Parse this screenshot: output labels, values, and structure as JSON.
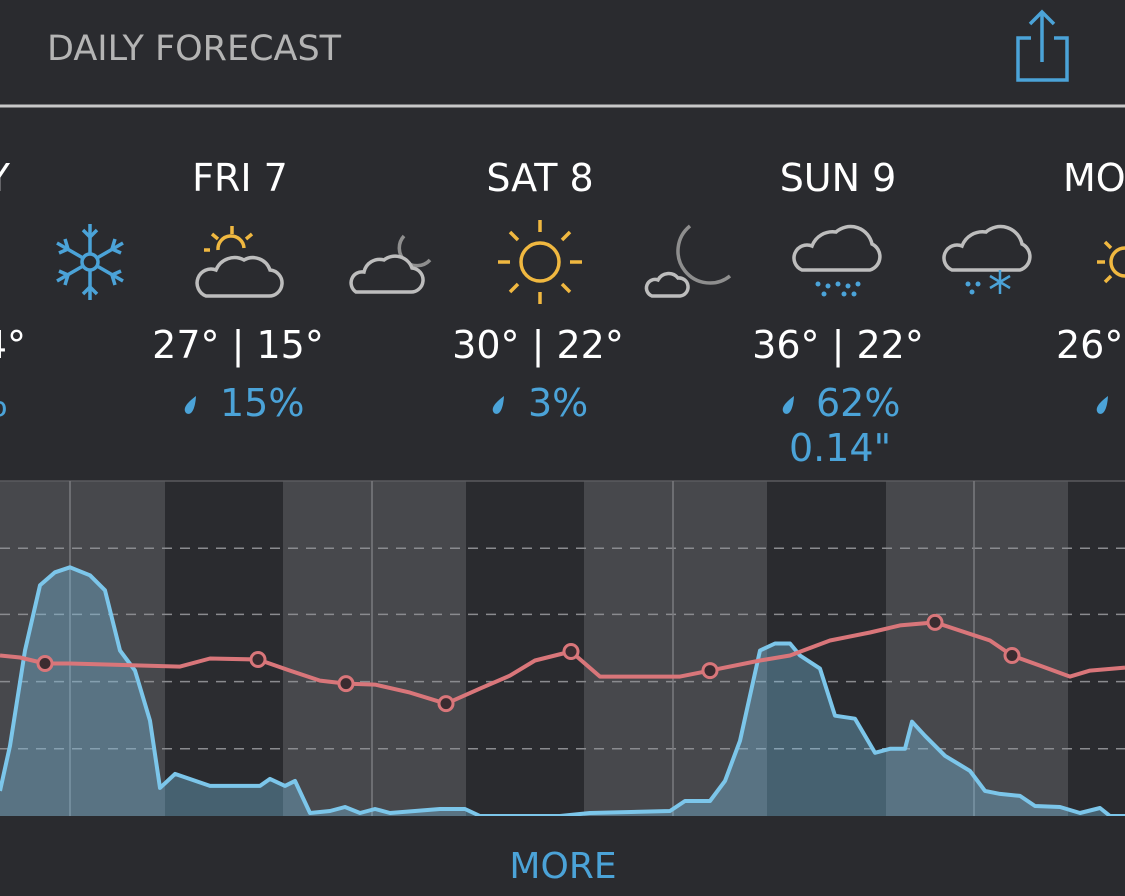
{
  "header": {
    "title": "DAILY FORECAST",
    "action": "MORE"
  },
  "days": [
    {
      "day": "Y",
      "temps": "4°",
      "precip": "%"
    },
    {
      "day": "FRI 7",
      "temps": "27° | 15°",
      "precip": "15%"
    },
    {
      "day": "SAT 8",
      "temps": "30° | 22°",
      "precip": "3%"
    },
    {
      "day": "SUN 9",
      "temps": "36° | 22°",
      "precip": "62%",
      "amount": "0.14\""
    },
    {
      "day": "MO",
      "temps": "26°"
    }
  ],
  "chart_data": {
    "type": "area",
    "xlim": [
      0,
      1125
    ],
    "ylim": [
      0,
      334
    ],
    "grid_y": [
      67,
      134,
      201,
      267
    ],
    "grid_x": [
      70,
      372,
      673,
      974
    ],
    "series": [
      {
        "kind": "area",
        "color": "#7cc6ea",
        "x": [
          0,
          10,
          25,
          40,
          55,
          70,
          90,
          105,
          120,
          135,
          150,
          160,
          175,
          210,
          260,
          270,
          285,
          295,
          310,
          330,
          345,
          360,
          375,
          390,
          440,
          465,
          480,
          560,
          590,
          670,
          685,
          710,
          725,
          740,
          760,
          775,
          790,
          800,
          820,
          835,
          855,
          875,
          890,
          905,
          912,
          925,
          945,
          970,
          985,
          1000,
          1020,
          1035,
          1060,
          1080,
          1100,
          1110,
          1125
        ],
        "values": [
          25,
          70,
          165,
          230,
          243,
          248,
          240,
          225,
          165,
          145,
          95,
          28,
          42,
          30,
          30,
          37,
          30,
          35,
          3,
          5,
          9,
          3,
          7,
          3,
          7,
          7,
          0,
          0,
          3,
          5,
          15,
          15,
          35,
          75,
          165,
          172,
          172,
          160,
          147,
          100,
          97,
          63,
          67,
          67,
          94,
          80,
          60,
          45,
          25,
          22,
          20,
          10,
          9,
          3,
          8,
          0,
          0
        ]
      },
      {
        "kind": "line",
        "color": "#d9767a",
        "x": [
          0,
          20,
          45,
          70,
          180,
          210,
          258,
          290,
          320,
          346,
          375,
          410,
          446,
          480,
          510,
          535,
          571,
          600,
          680,
          710,
          760,
          790,
          830,
          870,
          900,
          935,
          990,
          1012,
          1040,
          1070,
          1090,
          1125
        ],
        "values": [
          160,
          158,
          152,
          152,
          149,
          157,
          156,
          145,
          135,
          132,
          131,
          123,
          112,
          127,
          140,
          155,
          164,
          139,
          139,
          145,
          155,
          160,
          175,
          183,
          190,
          193,
          175,
          160,
          150,
          139,
          145,
          148
        ]
      },
      {
        "kind": "points",
        "color": "#d9767a",
        "x": [
          45,
          258,
          346,
          446,
          571,
          710,
          935,
          1012
        ],
        "values": [
          152,
          156,
          132,
          112,
          164,
          145,
          193,
          160
        ]
      }
    ]
  }
}
